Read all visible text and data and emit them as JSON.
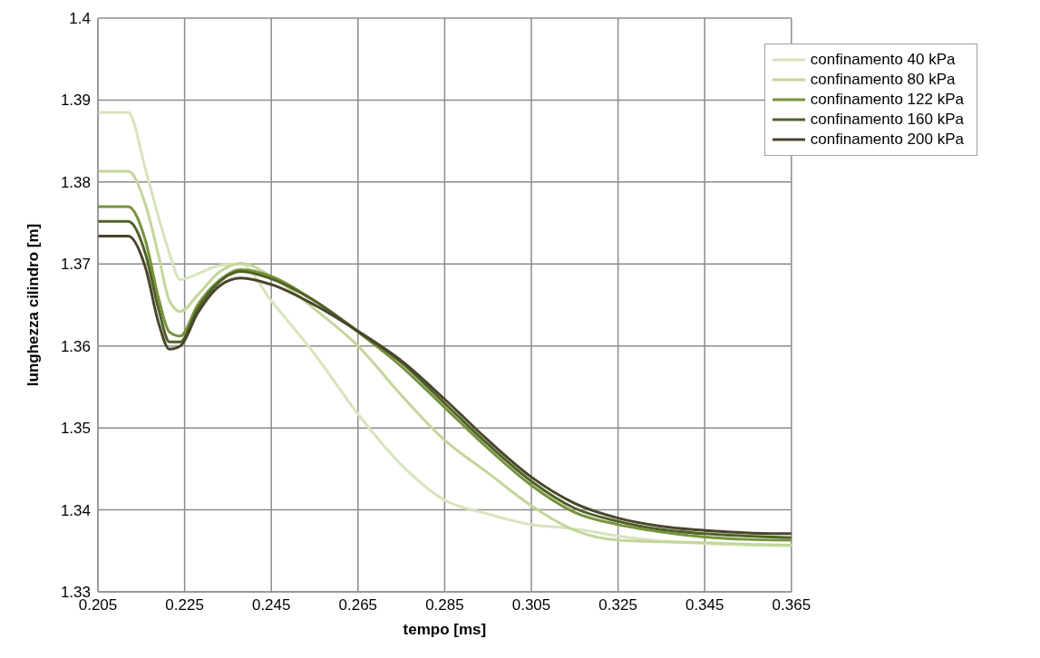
{
  "chart_data": {
    "type": "line",
    "xlabel": "tempo [ms]",
    "ylabel": "lunghezza cilindro [m]",
    "x": [
      0.205,
      0.212,
      0.216,
      0.219,
      0.2215,
      0.224,
      0.228,
      0.233,
      0.238,
      0.245,
      0.255,
      0.265,
      0.275,
      0.285,
      0.295,
      0.305,
      0.315,
      0.325,
      0.335,
      0.345,
      0.355,
      0.365
    ],
    "series": [
      {
        "name": "confinamento 40 kPa",
        "color": "#d7e4bd",
        "values": [
          1.3885,
          1.3885,
          1.3815,
          1.3757,
          1.3713,
          1.3681,
          1.3688,
          1.3698,
          1.37,
          1.3655,
          1.359,
          1.3517,
          1.3455,
          1.3412,
          1.3395,
          1.3382,
          1.3377,
          1.3368,
          1.3362,
          1.3359,
          1.3357,
          1.3356
        ]
      },
      {
        "name": "confinamento 80 kPa",
        "color": "#c3d69b",
        "values": [
          1.3813,
          1.3813,
          1.3772,
          1.371,
          1.3655,
          1.3642,
          1.3662,
          1.369,
          1.3701,
          1.3685,
          1.3645,
          1.36,
          1.354,
          1.3485,
          1.3445,
          1.3405,
          1.3375,
          1.3363,
          1.3361,
          1.336,
          1.3358,
          1.3357
        ]
      },
      {
        "name": "confinamento 122 kPa",
        "color": "#77933c",
        "values": [
          1.377,
          1.377,
          1.3728,
          1.3658,
          1.3617,
          1.3612,
          1.365,
          1.368,
          1.3693,
          1.3685,
          1.3655,
          1.3617,
          1.3575,
          1.3525,
          1.3475,
          1.343,
          1.3397,
          1.3382,
          1.3373,
          1.3367,
          1.3364,
          1.3363
        ]
      },
      {
        "name": "confinamento 160 kPa",
        "color": "#4f6228",
        "values": [
          1.3752,
          1.3752,
          1.3712,
          1.3645,
          1.3605,
          1.3605,
          1.3645,
          1.3678,
          1.3691,
          1.3682,
          1.3655,
          1.3618,
          1.358,
          1.353,
          1.348,
          1.3435,
          1.3402,
          1.3386,
          1.3376,
          1.3371,
          1.3368,
          1.3366
        ]
      },
      {
        "name": "confinamento 200 kPa",
        "color": "#4a452a",
        "values": [
          1.3734,
          1.3734,
          1.3695,
          1.3628,
          1.3596,
          1.36,
          1.364,
          1.3673,
          1.3683,
          1.3675,
          1.365,
          1.3618,
          1.3582,
          1.3535,
          1.3485,
          1.344,
          1.3408,
          1.339,
          1.338,
          1.3375,
          1.3372,
          1.3371
        ]
      }
    ],
    "xlim": [
      0.205,
      0.365
    ],
    "xticks": [
      0.205,
      0.225,
      0.245,
      0.265,
      0.285,
      0.305,
      0.325,
      0.345,
      0.365
    ],
    "ylim": [
      1.33,
      1.4
    ],
    "yticks": [
      1.33,
      1.34,
      1.35,
      1.36,
      1.37,
      1.38,
      1.39,
      1.4
    ],
    "grid": true,
    "legend": "top right",
    "marker": "none",
    "line_style": "solid"
  }
}
